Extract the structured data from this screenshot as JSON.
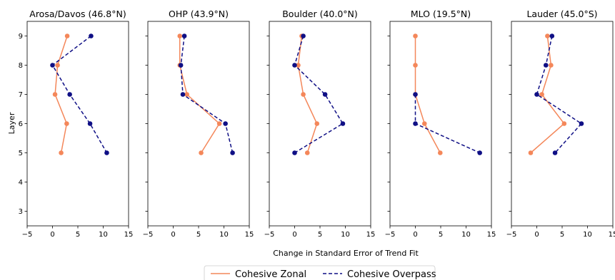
{
  "chart_data": {
    "type": "line",
    "xlabel": "Change in Standard Error of Trend Fit",
    "ylabel": "Layer",
    "xlim": [
      -5,
      15
    ],
    "ylim": [
      2.5,
      9.5
    ],
    "xticks": [
      -5,
      0,
      5,
      10,
      15
    ],
    "xtick_labels": [
      "−5",
      "0",
      "5",
      "10",
      "15"
    ],
    "yticks": [
      3,
      4,
      5,
      6,
      7,
      8,
      9
    ],
    "ytick_labels": [
      "3",
      "4",
      "5",
      "6",
      "7",
      "8",
      "9"
    ],
    "y_tick_labels_on_first_panel_only": true,
    "legend": {
      "position": "bottom-center",
      "entries": [
        "Cohesive Zonal",
        "Cohesive Overpass"
      ]
    },
    "series_styles": [
      {
        "name": "Cohesive Zonal",
        "color": "#f4875a",
        "linestyle": "solid",
        "marker": "circle"
      },
      {
        "name": "Cohesive Overpass",
        "color": "#0f0f85",
        "linestyle": "dashed",
        "marker": "circle"
      }
    ],
    "panels": [
      {
        "title": "Arosa/Davos (46.8°N)",
        "series": [
          {
            "name": "Cohesive Zonal",
            "points": [
              [
                2.9,
                9
              ],
              [
                1.0,
                8
              ],
              [
                0.5,
                7
              ],
              [
                2.8,
                6
              ],
              [
                1.7,
                5
              ]
            ]
          },
          {
            "name": "Cohesive Overpass",
            "points": [
              [
                7.6,
                9
              ],
              [
                0.0,
                8
              ],
              [
                3.4,
                7
              ],
              [
                7.4,
                6
              ],
              [
                10.7,
                5
              ]
            ]
          }
        ]
      },
      {
        "title": "OHP (43.9°N)",
        "series": [
          {
            "name": "Cohesive Zonal",
            "points": [
              [
                1.3,
                9
              ],
              [
                1.3,
                8
              ],
              [
                2.7,
                7
              ],
              [
                9.1,
                6
              ],
              [
                5.5,
                5
              ]
            ]
          },
          {
            "name": "Cohesive Overpass",
            "points": [
              [
                2.2,
                9
              ],
              [
                1.5,
                8
              ],
              [
                1.9,
                7
              ],
              [
                10.3,
                6
              ],
              [
                11.7,
                5
              ]
            ]
          }
        ]
      },
      {
        "title": "Boulder (40.0°N)",
        "series": [
          {
            "name": "Cohesive Zonal",
            "points": [
              [
                1.4,
                9
              ],
              [
                0.7,
                8
              ],
              [
                1.7,
                7
              ],
              [
                4.4,
                6
              ],
              [
                2.5,
                5
              ]
            ]
          },
          {
            "name": "Cohesive Overpass",
            "points": [
              [
                1.7,
                9
              ],
              [
                0.0,
                8
              ],
              [
                6.0,
                7
              ],
              [
                9.5,
                6
              ],
              [
                0.0,
                5
              ]
            ]
          }
        ]
      },
      {
        "title": "MLO (19.5°N)",
        "series": [
          {
            "name": "Cohesive Zonal",
            "points": [
              [
                0.0,
                9
              ],
              [
                0.0,
                8
              ],
              [
                0.0,
                7
              ],
              [
                1.8,
                6
              ],
              [
                4.9,
                5
              ]
            ]
          },
          {
            "name": "Cohesive Overpass",
            "points": [
              [
                0.0,
                7
              ],
              [
                0.0,
                6
              ],
              [
                12.7,
                5
              ]
            ]
          }
        ]
      },
      {
        "title": "Lauder (45.0°S)",
        "series": [
          {
            "name": "Cohesive Zonal",
            "points": [
              [
                2.1,
                9
              ],
              [
                2.8,
                8
              ],
              [
                1.0,
                7
              ],
              [
                5.4,
                6
              ],
              [
                -1.2,
                5
              ]
            ]
          },
          {
            "name": "Cohesive Overpass",
            "points": [
              [
                3.0,
                9
              ],
              [
                1.8,
                8
              ],
              [
                0.0,
                7
              ],
              [
                8.8,
                6
              ],
              [
                3.6,
                5
              ]
            ]
          }
        ]
      }
    ]
  }
}
